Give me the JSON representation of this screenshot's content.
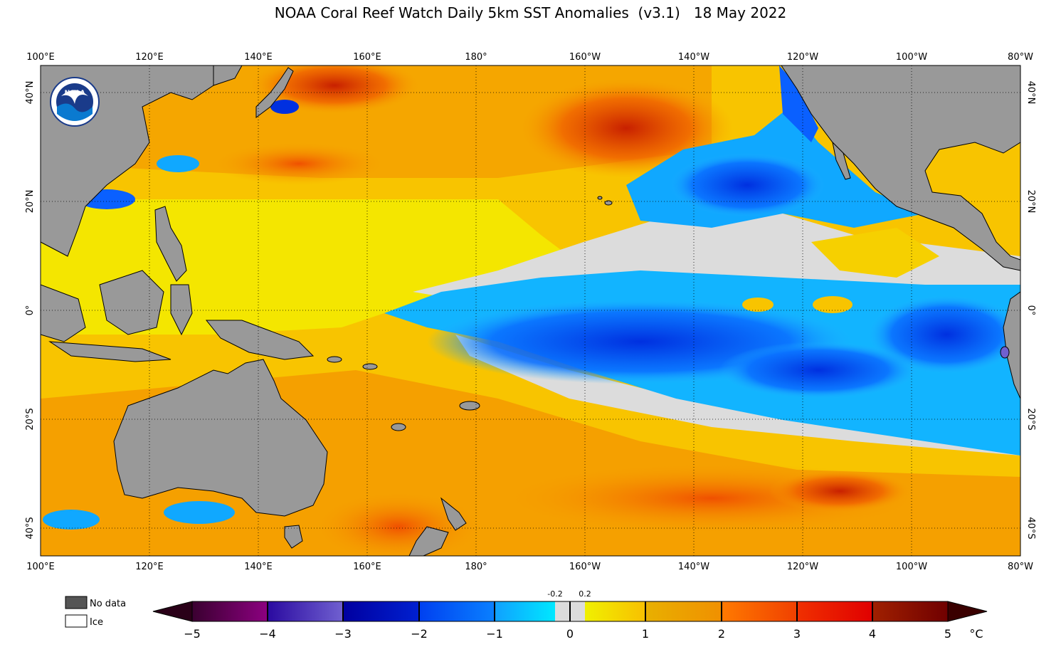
{
  "title": "NOAA Coral Reef Watch Daily 5km SST Anomalies  (v3.1)   18 May 2022",
  "map": {
    "lon_labels": [
      "100°E",
      "120°E",
      "140°E",
      "160°E",
      "180°",
      "160°W",
      "140°W",
      "120°W",
      "100°W",
      "80°W"
    ],
    "lat_labels": [
      "40°N",
      "20°N",
      "0°",
      "20°S",
      "40°S"
    ],
    "logo_text": "NOAA",
    "colors": {
      "land": "#999999",
      "nodata": "#dcdcdc",
      "grid": "#000000"
    }
  },
  "legend": {
    "no_data": "No data",
    "ice": "Ice",
    "colorbar": {
      "ticks": [
        "−5",
        "−4",
        "−3",
        "−2",
        "−1",
        "0",
        "1",
        "2",
        "3",
        "4",
        "5"
      ],
      "small_ticks": [
        "-0.2",
        "0.2"
      ],
      "unit": "°C"
    }
  }
}
